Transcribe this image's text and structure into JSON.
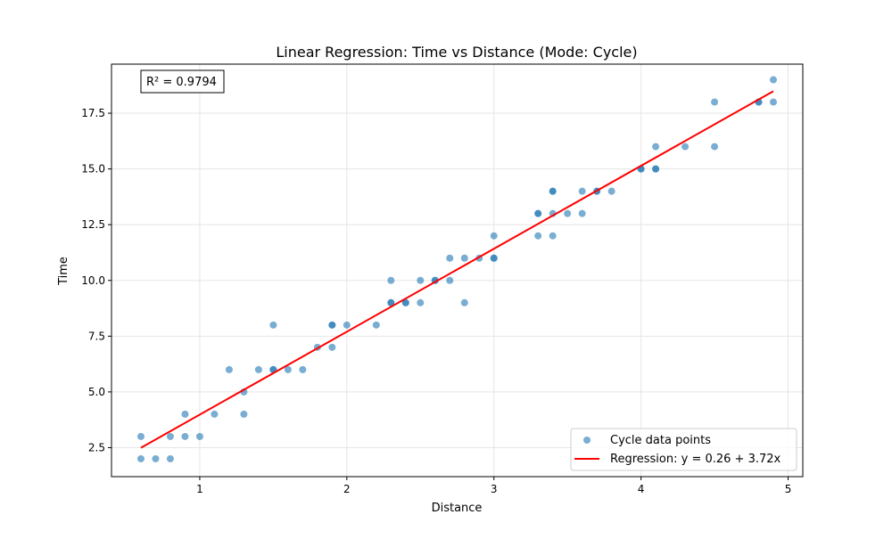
{
  "chart_data": {
    "type": "scatter",
    "title": "Linear Regression: Time vs Distance (Mode: Cycle)",
    "xlabel": "Distance",
    "ylabel": "Time",
    "xlim": [
      0.4,
      5.1
    ],
    "ylim": [
      1.2,
      19.7
    ],
    "x_ticks": [
      1,
      2,
      3,
      4,
      5
    ],
    "y_ticks": [
      2.5,
      5.0,
      7.5,
      10.0,
      12.5,
      15.0,
      17.5
    ],
    "x_tick_labels": [
      "1",
      "2",
      "3",
      "4",
      "5"
    ],
    "y_tick_labels": [
      "2.5",
      "5.0",
      "7.5",
      "10.0",
      "12.5",
      "15.0",
      "17.5"
    ],
    "grid": true,
    "legend_position": "lower right",
    "annotation": "R² = 0.9794",
    "series": [
      {
        "name": "Cycle data points",
        "type": "scatter",
        "color": "#1f77b4",
        "points": [
          [
            0.6,
            2
          ],
          [
            0.6,
            3
          ],
          [
            0.7,
            2
          ],
          [
            0.8,
            2
          ],
          [
            0.8,
            3
          ],
          [
            0.9,
            3
          ],
          [
            0.9,
            4
          ],
          [
            1.0,
            3
          ],
          [
            1.1,
            4
          ],
          [
            1.2,
            6
          ],
          [
            1.3,
            4
          ],
          [
            1.3,
            5
          ],
          [
            1.4,
            6
          ],
          [
            1.5,
            6
          ],
          [
            1.5,
            6
          ],
          [
            1.5,
            8
          ],
          [
            1.6,
            6
          ],
          [
            1.7,
            6
          ],
          [
            1.8,
            7
          ],
          [
            1.9,
            7
          ],
          [
            1.9,
            8
          ],
          [
            1.9,
            8
          ],
          [
            2.0,
            8
          ],
          [
            2.2,
            8
          ],
          [
            2.3,
            9
          ],
          [
            2.3,
            9
          ],
          [
            2.3,
            10
          ],
          [
            2.4,
            9
          ],
          [
            2.4,
            9
          ],
          [
            2.5,
            9
          ],
          [
            2.5,
            10
          ],
          [
            2.6,
            10
          ],
          [
            2.6,
            10
          ],
          [
            2.7,
            10
          ],
          [
            2.7,
            11
          ],
          [
            2.8,
            9
          ],
          [
            2.8,
            11
          ],
          [
            2.9,
            11
          ],
          [
            3.0,
            11
          ],
          [
            3.0,
            11
          ],
          [
            3.0,
            12
          ],
          [
            3.3,
            12
          ],
          [
            3.3,
            13
          ],
          [
            3.3,
            13
          ],
          [
            3.4,
            12
          ],
          [
            3.4,
            13
          ],
          [
            3.4,
            14
          ],
          [
            3.4,
            14
          ],
          [
            3.5,
            13
          ],
          [
            3.6,
            13
          ],
          [
            3.6,
            14
          ],
          [
            3.7,
            14
          ],
          [
            3.7,
            14
          ],
          [
            3.8,
            14
          ],
          [
            4.0,
            15
          ],
          [
            4.0,
            15
          ],
          [
            4.1,
            15
          ],
          [
            4.1,
            15
          ],
          [
            4.1,
            16
          ],
          [
            4.3,
            16
          ],
          [
            4.5,
            16
          ],
          [
            4.5,
            18
          ],
          [
            4.8,
            18
          ],
          [
            4.8,
            18
          ],
          [
            4.9,
            18
          ],
          [
            4.9,
            19
          ]
        ]
      },
      {
        "name": "Regression: y = 0.26 + 3.72x",
        "type": "line",
        "color": "#ff0000",
        "intercept": 0.26,
        "slope": 3.72,
        "x_range": [
          0.6,
          4.9
        ]
      }
    ]
  }
}
